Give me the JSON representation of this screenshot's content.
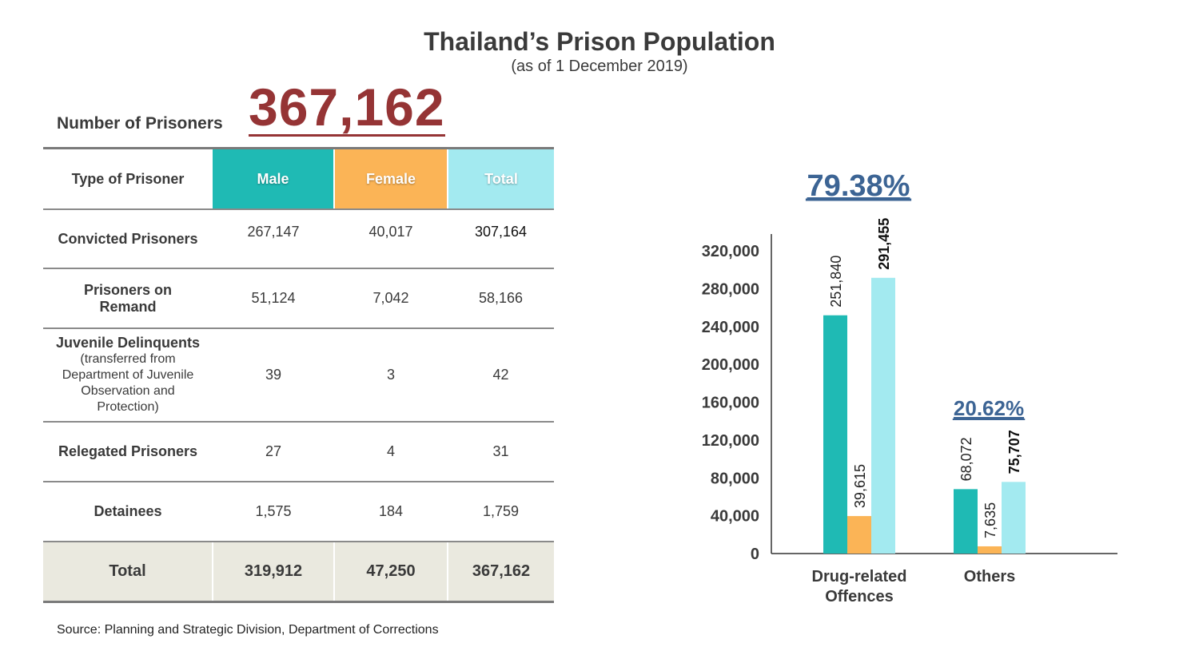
{
  "title": "Thailand’s Prison Population",
  "subtitle": "(as of 1 December 2019)",
  "number_of_prisoners": {
    "label": "Number of Prisoners",
    "value": "367,162"
  },
  "table": {
    "headers": [
      "Type of Prisoner",
      "Male",
      "Female",
      "Total"
    ],
    "rows": [
      {
        "label": "Convicted Prisoners",
        "sub": "",
        "values": [
          "267,147",
          "40,017",
          "307,164"
        ]
      },
      {
        "label": "Prisoners on Remand",
        "sub": "",
        "values": [
          "51,124",
          "7,042",
          "58,166"
        ]
      },
      {
        "label": "Juvenile Delinquents",
        "sub": "(transferred from Department of Juvenile Observation and Protection)",
        "values": [
          "39",
          "3",
          "42"
        ]
      },
      {
        "label": "Relegated Prisoners",
        "sub": "",
        "values": [
          "27",
          "4",
          "31"
        ]
      },
      {
        "label": "Detainees",
        "sub": "",
        "values": [
          "1,575",
          "184",
          "1,759"
        ]
      }
    ],
    "total": {
      "label": "Total",
      "values": [
        "319,912",
        "47,250",
        "367,162"
      ]
    }
  },
  "source": "Source: Planning and Strategic Division, Department of Corrections",
  "colors": {
    "male": "#1fbab4",
    "female": "#fbb456",
    "total": "#a3eaf0",
    "highlight": "#953435",
    "percent": "#3c6494"
  },
  "chart_data": {
    "type": "bar",
    "categories": [
      "Drug-related Offences",
      "Others"
    ],
    "series": [
      {
        "name": "Male",
        "values": [
          251840,
          68072
        ]
      },
      {
        "name": "Female",
        "values": [
          39615,
          7635
        ]
      },
      {
        "name": "Total",
        "values": [
          291455,
          75707
        ]
      }
    ],
    "data_labels": [
      [
        "251,840",
        "39,615",
        "291,455"
      ],
      [
        "68,072",
        "7,635",
        "75,707"
      ]
    ],
    "percentages": [
      "79.38%",
      "20.62%"
    ],
    "yticks": [
      "0",
      "40,000",
      "80,000",
      "120,000",
      "160,000",
      "200,000",
      "240,000",
      "280,000",
      "320,000"
    ],
    "ylim": [
      0,
      340000
    ],
    "grid": false
  }
}
